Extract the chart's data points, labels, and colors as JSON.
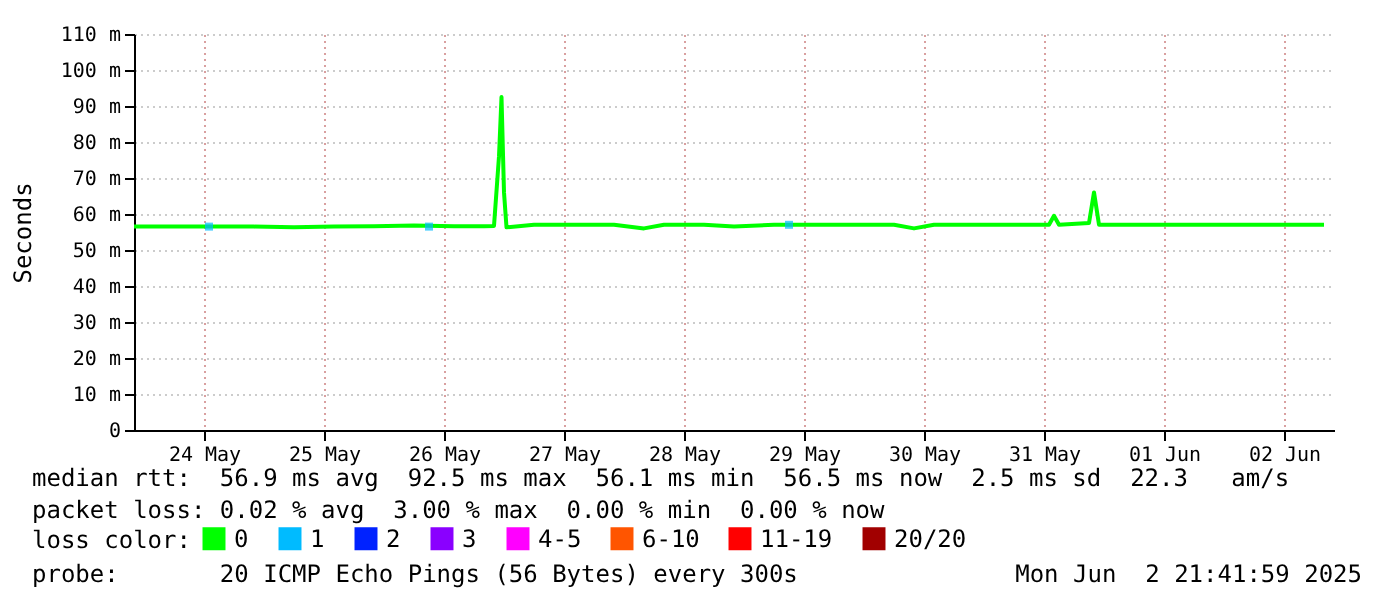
{
  "chart_data": {
    "type": "line",
    "ylabel": "Seconds",
    "legend_title": "loss color:",
    "legend": "bottom",
    "grid": true,
    "xlim": [
      "2025-05-23T22:00",
      "2025-06-02T22:00"
    ],
    "xticks": [
      {
        "value": "2025-05-24T12:00",
        "label": "24 May"
      },
      {
        "value": "2025-05-25T12:00",
        "label": "25 May"
      },
      {
        "value": "2025-05-26T12:00",
        "label": "26 May"
      },
      {
        "value": "2025-05-27T12:00",
        "label": "27 May"
      },
      {
        "value": "2025-05-28T12:00",
        "label": "28 May"
      },
      {
        "value": "2025-05-29T12:00",
        "label": "29 May"
      },
      {
        "value": "2025-05-30T12:00",
        "label": "30 May"
      },
      {
        "value": "2025-05-31T12:00",
        "label": "31 May"
      },
      {
        "value": "2025-06-01T12:00",
        "label": "01 Jun"
      },
      {
        "value": "2025-06-02T12:00",
        "label": "02 Jun"
      }
    ],
    "ylim": [
      0,
      110
    ],
    "yticks": [
      0,
      {
        "value": 10,
        "label": "10 m"
      },
      {
        "value": 20,
        "label": "20 m"
      },
      {
        "value": 30,
        "label": "30 m"
      },
      {
        "value": 40,
        "label": "40 m"
      },
      {
        "value": 50,
        "label": "50 m"
      },
      {
        "value": 60,
        "label": "60 m"
      },
      {
        "value": 70,
        "label": "70 m"
      },
      {
        "value": 80,
        "label": "80 m"
      },
      {
        "value": 90,
        "label": "90 m"
      },
      {
        "value": 100,
        "label": "100 m"
      },
      {
        "value": 110,
        "label": "110 m"
      }
    ],
    "series": [
      {
        "name": "0",
        "color": "#00ff00",
        "x": [
          "2025-05-23T22:00",
          "2025-05-24T06:00",
          "2025-05-24T14:00",
          "2025-05-24T22:00",
          "2025-05-25T06:00",
          "2025-05-25T14:00",
          "2025-05-25T22:00",
          "2025-05-26T06:00",
          "2025-05-26T14:00",
          "2025-05-26T20:00",
          "2025-05-26T22:00",
          "2025-05-26T23:00",
          "2025-05-26T23:30",
          "2025-05-27T00:00",
          "2025-05-27T00:30",
          "2025-05-27T06:00",
          "2025-05-27T14:00",
          "2025-05-27T22:00",
          "2025-05-28T04:00",
          "2025-05-28T08:00",
          "2025-05-28T16:00",
          "2025-05-28T22:00",
          "2025-05-29T06:00",
          "2025-05-29T14:00",
          "2025-05-29T22:00",
          "2025-05-30T06:00",
          "2025-05-30T10:00",
          "2025-05-30T14:00",
          "2025-05-30T22:00",
          "2025-05-31T06:00",
          "2025-05-31T13:00",
          "2025-05-31T14:00",
          "2025-05-31T15:00",
          "2025-05-31T21:00",
          "2025-05-31T22:00",
          "2025-05-31T23:00",
          "2025-06-01T06:00",
          "2025-06-01T14:00",
          "2025-06-01T22:00",
          "2025-06-02T06:00",
          "2025-06-02T14:00",
          "2025-06-02T20:00"
        ],
        "values": [
          56.5,
          56.5,
          56.5,
          56.5,
          56.3,
          56.5,
          56.6,
          56.8,
          56.6,
          56.6,
          56.7,
          76,
          92.5,
          66,
          56.3,
          57,
          57,
          57,
          56,
          57,
          57,
          56.5,
          57,
          57,
          57,
          57,
          56,
          57,
          57,
          57,
          57,
          59.5,
          57,
          57.5,
          66,
          57,
          57,
          57,
          57,
          57,
          57,
          57
        ]
      },
      {
        "name": "1",
        "color": "#00bbff",
        "type": "scatter",
        "marker": "square",
        "x": [
          "2025-05-24T13:00",
          "2025-05-26T09:00",
          "2025-05-29T09:00"
        ],
        "values": [
          56.5,
          56.5,
          57
        ]
      },
      {
        "name": "2",
        "color": "#0022ff"
      },
      {
        "name": "3",
        "color": "#8a00ff"
      },
      {
        "name": "4-5",
        "color": "#ff00ff"
      },
      {
        "name": "6-10",
        "color": "#ff5500"
      },
      {
        "name": "11-19",
        "color": "#ff0000"
      },
      {
        "name": "20/20",
        "color": "#a10000"
      }
    ],
    "annotations": [
      "median rtt:  56.9 ms avg  92.5 ms max  56.1 ms min  56.5 ms now  2.5 ms sd  22.3   am/s",
      "packet loss: 0.02 % avg  3.00 % max  0.00 % min  0.00 % now",
      "probe:       20 ICMP Echo Pings (56 Bytes) every 300s",
      "Mon Jun  2 21:41:59 2025"
    ]
  }
}
